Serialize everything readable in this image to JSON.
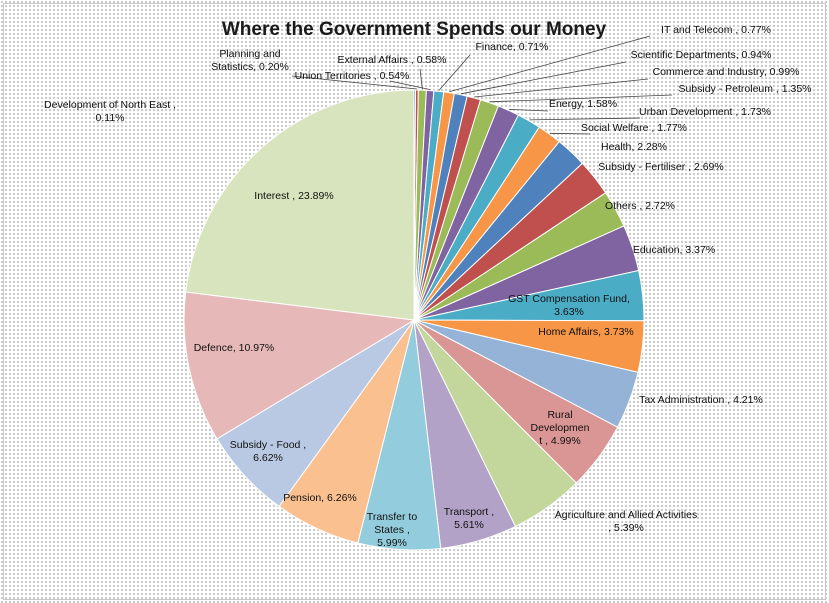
{
  "chart_data": {
    "type": "pie",
    "title": "Where the Government Spends our Money",
    "slices": [
      {
        "label": "Development of North East",
        "value": 0.11,
        "display": "Development of North East ,\n0.11%",
        "color": "#4f81bd"
      },
      {
        "label": "Planning and Statistics",
        "value": 0.2,
        "display": "Planning and\nStatistics, 0.20%",
        "color": "#c0504d"
      },
      {
        "label": "External Affairs",
        "value": 0.58,
        "display": "External Affairs , 0.58%",
        "color": "#9bbb59"
      },
      {
        "label": "Union Territories",
        "value": 0.54,
        "display": "Union Territories , 0.54%",
        "color": "#8064a2"
      },
      {
        "label": "Finance",
        "value": 0.71,
        "display": "Finance, 0.71%",
        "color": "#4bacc6"
      },
      {
        "label": "IT and Telecom",
        "value": 0.77,
        "display": "IT and Telecom , 0.77%",
        "color": "#f79646"
      },
      {
        "label": "Scientific Departments",
        "value": 0.94,
        "display": "Scientific Departments, 0.94%",
        "color": "#4f81bd"
      },
      {
        "label": "Commerce and Industry",
        "value": 0.99,
        "display": "Commerce and Industry, 0.99%",
        "color": "#c0504d"
      },
      {
        "label": "Subsidy - Petroleum",
        "value": 1.35,
        "display": "Subsidy - Petroleum , 1.35%",
        "color": "#9bbb59"
      },
      {
        "label": "Energy",
        "value": 1.58,
        "display": "Energy, 1.58%",
        "color": "#8064a2"
      },
      {
        "label": "Urban Development",
        "value": 1.73,
        "display": "Urban Development , 1.73%",
        "color": "#4bacc6"
      },
      {
        "label": "Social Welfare",
        "value": 1.77,
        "display": "Social Welfare , 1.77%",
        "color": "#f79646"
      },
      {
        "label": "Health",
        "value": 2.28,
        "display": "Health, 2.28%",
        "color": "#4f81bd"
      },
      {
        "label": "Subsidy - Fertiliser",
        "value": 2.69,
        "display": "Subsidy - Fertiliser , 2.69%",
        "color": "#c0504d"
      },
      {
        "label": "Others",
        "value": 2.72,
        "display": "Others , 2.72%",
        "color": "#9bbb59"
      },
      {
        "label": "Education",
        "value": 3.37,
        "display": "Education, 3.37%",
        "color": "#8064a2"
      },
      {
        "label": "GST Compensation Fund",
        "value": 3.63,
        "display": "GST Compensation Fund,\n3.63%",
        "color": "#4bacc6"
      },
      {
        "label": "Home Affairs",
        "value": 3.73,
        "display": "Home Affairs, 3.73%",
        "color": "#f79646"
      },
      {
        "label": "Tax Administration",
        "value": 4.21,
        "display": "Tax Administration , 4.21%",
        "color": "#95b3d7"
      },
      {
        "label": "Rural Development",
        "value": 4.99,
        "display": "Rural\nDevelopmen\nt , 4.99%",
        "color": "#d99694"
      },
      {
        "label": "Agriculture and Allied Activities",
        "value": 5.39,
        "display": "Agriculture and Allied Activities\n, 5.39%",
        "color": "#c3d69b"
      },
      {
        "label": "Transport",
        "value": 5.61,
        "display": "Transport ,\n5.61%",
        "color": "#b2a2c7"
      },
      {
        "label": "Transfer to States",
        "value": 5.99,
        "display": "Transfer to\nStates ,\n5.99%",
        "color": "#93cddd"
      },
      {
        "label": "Pension",
        "value": 6.26,
        "display": "Pension, 6.26%",
        "color": "#fac090"
      },
      {
        "label": "Subsidy - Food",
        "value": 6.62,
        "display": "Subsidy - Food ,\n6.62%",
        "color": "#b9c9e3"
      },
      {
        "label": "Defence",
        "value": 10.97,
        "display": "Defence, 10.97%",
        "color": "#e6b9b8"
      },
      {
        "label": "Interest",
        "value": 23.89,
        "display": "Interest , 23.89%",
        "color": "#d7e4bd"
      }
    ],
    "legend": "none",
    "data_labels": "category, percentage"
  }
}
